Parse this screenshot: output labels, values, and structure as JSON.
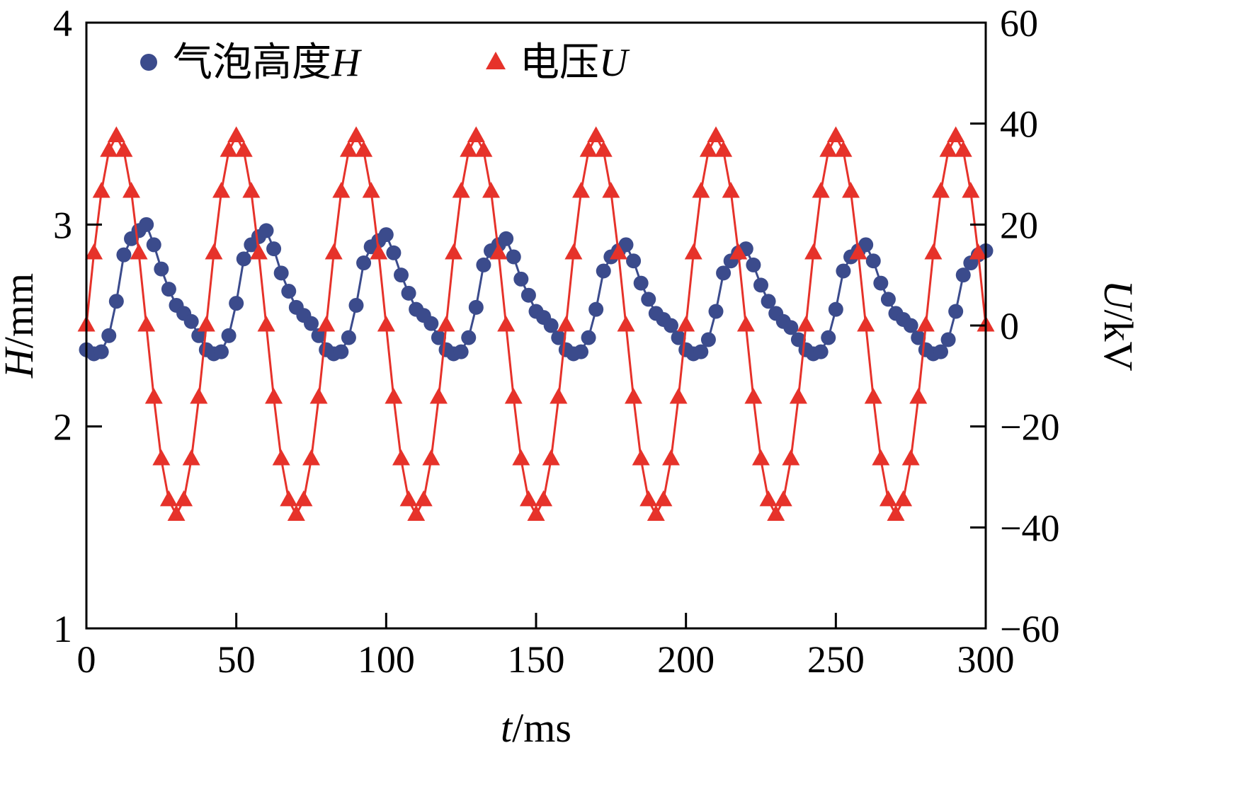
{
  "chart_data": {
    "type": "line",
    "title": "",
    "xlabel": {
      "var": "t",
      "unit": "/ms"
    },
    "ylabel_left": {
      "var": "H",
      "unit": "/mm"
    },
    "ylabel_right": {
      "var": "U",
      "unit": "/kV"
    },
    "xlim": [
      0,
      300
    ],
    "ylim_left": [
      1,
      4
    ],
    "ylim_right": [
      -60,
      60
    ],
    "xticks": [
      0,
      50,
      100,
      150,
      200,
      250,
      300
    ],
    "yticks_left": [
      1,
      2,
      3,
      4
    ],
    "yticks_right": [
      -60,
      -40,
      -20,
      0,
      20,
      40,
      60
    ],
    "grid": false,
    "legend_position": "top-left-inside",
    "colors": {
      "bubble_height": "#3b4b8c",
      "voltage": "#e6322a"
    },
    "legend": [
      {
        "text": "气泡高度",
        "var": "H",
        "marker": "circle",
        "color": "#3b4b8c"
      },
      {
        "text": "电压",
        "var": "U",
        "marker": "triangle",
        "color": "#e6322a"
      }
    ],
    "x": [
      0,
      2.5,
      5,
      7.5,
      10,
      12.5,
      15,
      17.5,
      20,
      22.5,
      25,
      27.5,
      30,
      32.5,
      35,
      37.5,
      40,
      42.5,
      45,
      47.5,
      50,
      52.5,
      55,
      57.5,
      60,
      62.5,
      65,
      67.5,
      70,
      72.5,
      75,
      77.5,
      80,
      82.5,
      85,
      87.5,
      90,
      92.5,
      95,
      97.5,
      100,
      102.5,
      105,
      107.5,
      110,
      112.5,
      115,
      117.5,
      120,
      122.5,
      125,
      127.5,
      130,
      132.5,
      135,
      137.5,
      140,
      142.5,
      145,
      147.5,
      150,
      152.5,
      155,
      157.5,
      160,
      162.5,
      165,
      167.5,
      170,
      172.5,
      175,
      177.5,
      180,
      182.5,
      185,
      187.5,
      190,
      192.5,
      195,
      197.5,
      200,
      202.5,
      205,
      207.5,
      210,
      212.5,
      215,
      217.5,
      220,
      222.5,
      225,
      227.5,
      230,
      232.5,
      235,
      237.5,
      240,
      242.5,
      245,
      247.5,
      250,
      252.5,
      255,
      257.5,
      260,
      262.5,
      265,
      267.5,
      270,
      272.5,
      275,
      277.5,
      280,
      282.5,
      285,
      287.5,
      290,
      292.5,
      295,
      297.5,
      300
    ],
    "series": [
      {
        "name": "气泡高度H",
        "axis": "left",
        "marker": "circle",
        "color": "#3b4b8c",
        "values": [
          2.38,
          2.36,
          2.37,
          2.45,
          2.62,
          2.85,
          2.93,
          2.97,
          3.0,
          2.9,
          2.78,
          2.68,
          2.6,
          2.56,
          2.52,
          2.45,
          2.38,
          2.36,
          2.37,
          2.45,
          2.61,
          2.83,
          2.9,
          2.94,
          2.97,
          2.88,
          2.76,
          2.67,
          2.59,
          2.55,
          2.51,
          2.45,
          2.38,
          2.36,
          2.37,
          2.44,
          2.6,
          2.81,
          2.89,
          2.92,
          2.95,
          2.86,
          2.75,
          2.66,
          2.58,
          2.55,
          2.51,
          2.44,
          2.38,
          2.36,
          2.37,
          2.44,
          2.59,
          2.8,
          2.87,
          2.9,
          2.93,
          2.84,
          2.73,
          2.65,
          2.57,
          2.54,
          2.5,
          2.44,
          2.38,
          2.36,
          2.37,
          2.44,
          2.58,
          2.77,
          2.84,
          2.87,
          2.9,
          2.82,
          2.71,
          2.63,
          2.56,
          2.53,
          2.5,
          2.44,
          2.38,
          2.36,
          2.37,
          2.43,
          2.57,
          2.76,
          2.82,
          2.86,
          2.88,
          2.8,
          2.7,
          2.62,
          2.56,
          2.52,
          2.49,
          2.43,
          2.38,
          2.36,
          2.37,
          2.44,
          2.58,
          2.77,
          2.84,
          2.87,
          2.9,
          2.82,
          2.71,
          2.63,
          2.56,
          2.53,
          2.5,
          2.44,
          2.38,
          2.36,
          2.37,
          2.43,
          2.57,
          2.75,
          2.81,
          2.85,
          2.87
        ]
      },
      {
        "name": "电压U",
        "axis": "right",
        "marker": "triangle",
        "color": "#e6322a",
        "values": [
          0,
          14.3,
          26.5,
          34.6,
          37.5,
          34.6,
          26.5,
          14.3,
          0,
          -14.3,
          -26.5,
          -34.6,
          -37.5,
          -34.6,
          -26.5,
          -14.3,
          0,
          14.3,
          26.5,
          34.6,
          37.5,
          34.6,
          26.5,
          14.3,
          0,
          -14.3,
          -26.5,
          -34.6,
          -37.5,
          -34.6,
          -26.5,
          -14.3,
          0,
          14.3,
          26.5,
          34.6,
          37.5,
          34.6,
          26.5,
          14.3,
          0,
          -14.3,
          -26.5,
          -34.6,
          -37.5,
          -34.6,
          -26.5,
          -14.3,
          0,
          14.3,
          26.5,
          34.6,
          37.5,
          34.6,
          26.5,
          14.3,
          0,
          -14.3,
          -26.5,
          -34.6,
          -37.5,
          -34.6,
          -26.5,
          -14.3,
          0,
          14.3,
          26.5,
          34.6,
          37.5,
          34.6,
          26.5,
          14.3,
          0,
          -14.3,
          -26.5,
          -34.6,
          -37.5,
          -34.6,
          -26.5,
          -14.3,
          0,
          14.3,
          26.5,
          34.6,
          37.5,
          34.6,
          26.5,
          14.3,
          0,
          -14.3,
          -26.5,
          -34.6,
          -37.5,
          -34.6,
          -26.5,
          -14.3,
          0,
          14.3,
          26.5,
          34.6,
          37.5,
          34.6,
          26.5,
          14.3,
          0,
          -14.3,
          -26.5,
          -34.6,
          -37.5,
          -34.6,
          -26.5,
          -14.3,
          0,
          14.3,
          26.5,
          34.6,
          37.5,
          34.6,
          26.5,
          14.3,
          0
        ]
      }
    ]
  }
}
